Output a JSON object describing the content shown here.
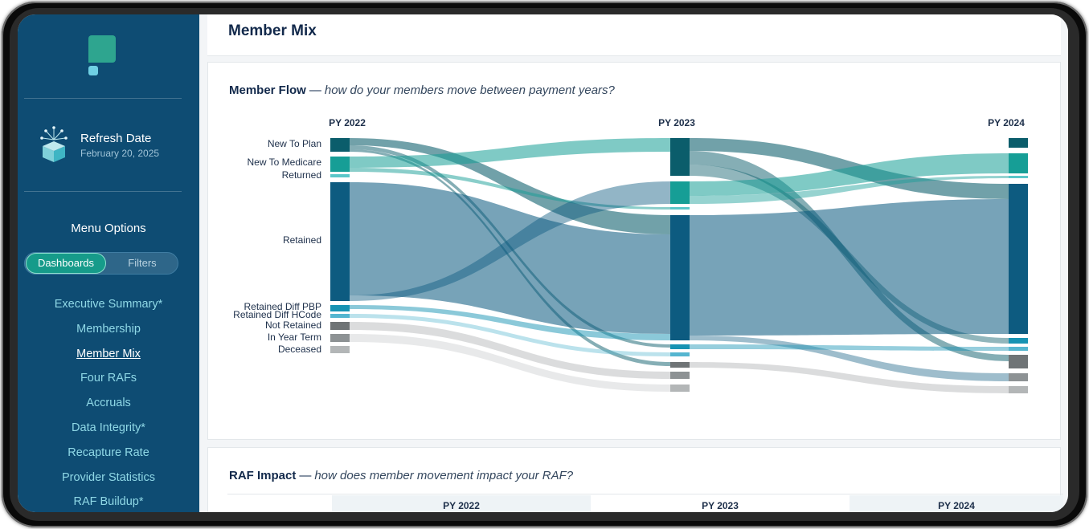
{
  "sidebar": {
    "refresh_title": "Refresh Date",
    "refresh_date": "February 20, 2025",
    "menu_title": "Menu Options",
    "toggle": {
      "active": "Dashboards",
      "inactive": "Filters"
    },
    "nav": [
      {
        "label": "Executive Summary*",
        "current": false
      },
      {
        "label": "Membership",
        "current": false
      },
      {
        "label": "Member Mix",
        "current": true
      },
      {
        "label": "Four RAFs",
        "current": false
      },
      {
        "label": "Accruals",
        "current": false
      },
      {
        "label": "Data Integrity*",
        "current": false
      },
      {
        "label": "Recapture Rate",
        "current": false
      },
      {
        "label": "Provider Statistics",
        "current": false
      },
      {
        "label": "RAF Buildup*",
        "current": false
      }
    ],
    "colors": {
      "background": "#0e4c73",
      "nav_text": "#8fd8e6",
      "accent": "#169b8a"
    }
  },
  "page": {
    "title": "Member Mix"
  },
  "member_flow": {
    "title": "Member Flow",
    "subtitle": "how do your members move between payment years?",
    "years": [
      "PY 2022",
      "PY 2023",
      "PY 2024"
    ],
    "categories": [
      {
        "label": "New To Plan",
        "color": "#0b5d6b"
      },
      {
        "label": "New To Medicare",
        "color": "#169e96"
      },
      {
        "label": "Returned",
        "color": "#5ac7c9"
      },
      {
        "label": "Retained",
        "color": "#0d5b80"
      },
      {
        "label": "Retained Diff PBP",
        "color": "#1793b3"
      },
      {
        "label": "Retained Diff HCode",
        "color": "#55b6d0"
      },
      {
        "label": "Not Retained",
        "color": "#6f7476"
      },
      {
        "label": "In Year Term",
        "color": "#8d9294"
      },
      {
        "label": "Deceased",
        "color": "#b3b6b7"
      }
    ]
  },
  "raf_impact": {
    "title": "RAF Impact",
    "subtitle": "how does member movement impact your RAF?",
    "columns": [
      "PY 2022",
      "PY 2023",
      "PY 2024"
    ]
  }
}
